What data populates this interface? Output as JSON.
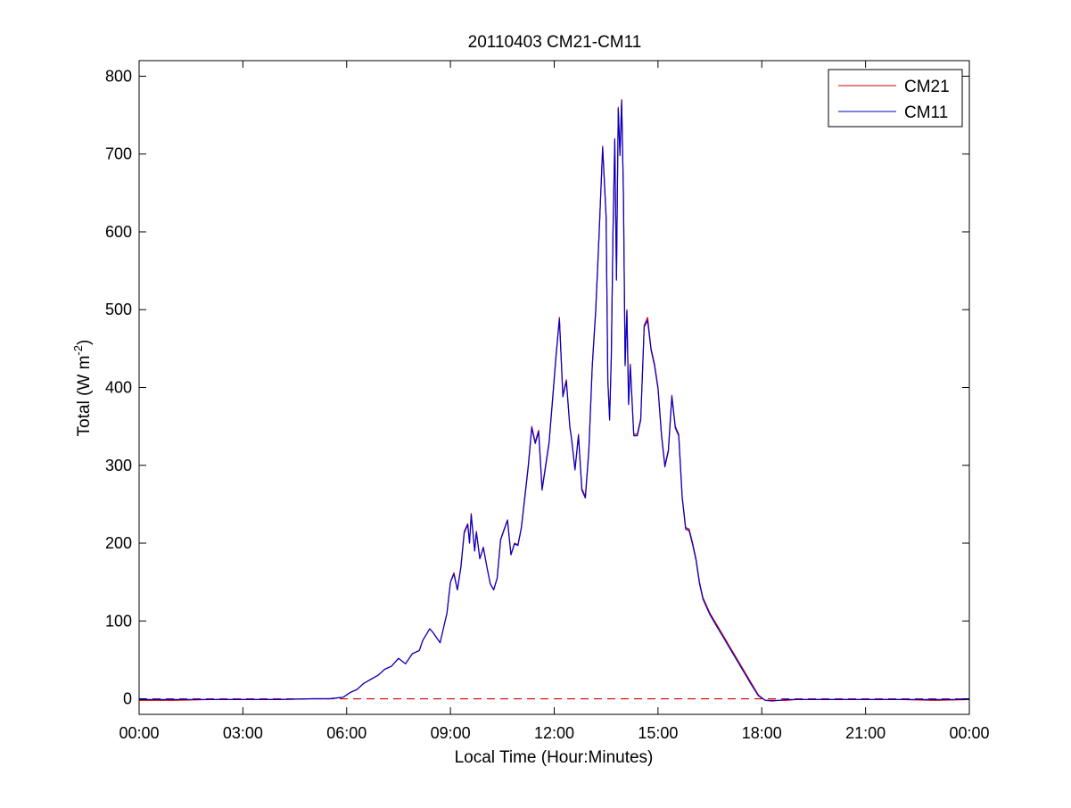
{
  "chart_data": {
    "type": "line",
    "title": "20110403 CM21-CM11",
    "xlabel": "Local Time (Hour:Minutes)",
    "ylabel_main": "Total (W m",
    "ylabel_sup": "-2",
    "ylabel_close": ")",
    "xlim": [
      0,
      24
    ],
    "ylim": [
      -20,
      820
    ],
    "x_ticks": [
      0,
      3,
      6,
      9,
      12,
      15,
      18,
      21,
      24
    ],
    "x_tick_labels": [
      "00:00",
      "03:00",
      "06:00",
      "09:00",
      "12:00",
      "15:00",
      "18:00",
      "21:00",
      "00:00"
    ],
    "y_ticks": [
      0,
      100,
      200,
      300,
      400,
      500,
      600,
      700,
      800
    ],
    "y_tick_labels": [
      "0",
      "100",
      "200",
      "300",
      "400",
      "500",
      "600",
      "700",
      "800"
    ],
    "grid": false,
    "legend_position": "top-right",
    "zero_reference_line": {
      "y": 0,
      "style": "dashed",
      "color": "#d00000"
    },
    "series": [
      {
        "name": "CM21",
        "color": "#d00000",
        "x": [
          0,
          1,
          2,
          3,
          4,
          5,
          5.5,
          5.9,
          6.1,
          6.3,
          6.5,
          6.7,
          6.9,
          7.1,
          7.3,
          7.5,
          7.7,
          7.9,
          8.1,
          8.2,
          8.4,
          8.5,
          8.7,
          8.9,
          9.0,
          9.1,
          9.2,
          9.3,
          9.4,
          9.5,
          9.55,
          9.6,
          9.7,
          9.75,
          9.85,
          9.95,
          10.05,
          10.15,
          10.25,
          10.35,
          10.45,
          10.55,
          10.65,
          10.75,
          10.85,
          10.95,
          11.05,
          11.15,
          11.25,
          11.35,
          11.45,
          11.55,
          11.65,
          11.75,
          11.85,
          11.95,
          12.05,
          12.15,
          12.25,
          12.35,
          12.45,
          12.5,
          12.6,
          12.7,
          12.8,
          12.9,
          13.0,
          13.1,
          13.2,
          13.3,
          13.4,
          13.5,
          13.55,
          13.6,
          13.65,
          13.7,
          13.75,
          13.8,
          13.85,
          13.9,
          13.95,
          14.0,
          14.05,
          14.1,
          14.15,
          14.2,
          14.3,
          14.4,
          14.5,
          14.6,
          14.7,
          14.8,
          14.9,
          15.0,
          15.1,
          15.2,
          15.3,
          15.4,
          15.5,
          15.6,
          15.7,
          15.8,
          15.9,
          16.0,
          16.1,
          16.2,
          16.3,
          16.5,
          16.7,
          16.9,
          17.1,
          17.3,
          17.5,
          17.7,
          17.9,
          18.1,
          18.3,
          18.5,
          18.7,
          19,
          20,
          21,
          22,
          23,
          24
        ],
        "y": [
          -2,
          -2,
          -1,
          -1,
          -1,
          0,
          0,
          2,
          8,
          12,
          20,
          25,
          30,
          38,
          42,
          52,
          45,
          58,
          62,
          75,
          90,
          85,
          72,
          110,
          150,
          162,
          140,
          170,
          215,
          225,
          200,
          238,
          190,
          215,
          180,
          195,
          170,
          148,
          140,
          155,
          205,
          218,
          230,
          185,
          200,
          198,
          220,
          260,
          300,
          350,
          330,
          345,
          270,
          300,
          330,
          385,
          440,
          490,
          390,
          410,
          350,
          335,
          295,
          340,
          270,
          260,
          320,
          430,
          500,
          600,
          710,
          620,
          410,
          360,
          440,
          600,
          720,
          540,
          760,
          700,
          770,
          650,
          430,
          500,
          380,
          430,
          340,
          340,
          360,
          480,
          490,
          450,
          430,
          400,
          340,
          300,
          320,
          390,
          350,
          340,
          260,
          220,
          218,
          200,
          180,
          150,
          130,
          110,
          95,
          80,
          65,
          50,
          35,
          20,
          5,
          -2,
          -3,
          -2,
          -2,
          -1,
          -1,
          -1,
          -1,
          -2,
          -1
        ],
        "note_visible": false
      },
      {
        "name": "CM11",
        "color": "#0000cc",
        "x": [
          0,
          1,
          2,
          3,
          4,
          5,
          5.5,
          5.9,
          6.1,
          6.3,
          6.5,
          6.7,
          6.9,
          7.1,
          7.3,
          7.5,
          7.7,
          7.9,
          8.1,
          8.2,
          8.4,
          8.5,
          8.7,
          8.9,
          9.0,
          9.1,
          9.2,
          9.3,
          9.4,
          9.5,
          9.55,
          9.6,
          9.7,
          9.75,
          9.85,
          9.95,
          10.05,
          10.15,
          10.25,
          10.35,
          10.45,
          10.55,
          10.65,
          10.75,
          10.85,
          10.95,
          11.05,
          11.15,
          11.25,
          11.35,
          11.45,
          11.55,
          11.65,
          11.75,
          11.85,
          11.95,
          12.05,
          12.15,
          12.25,
          12.35,
          12.45,
          12.5,
          12.6,
          12.7,
          12.8,
          12.9,
          13.0,
          13.1,
          13.2,
          13.3,
          13.4,
          13.5,
          13.55,
          13.6,
          13.65,
          13.7,
          13.75,
          13.8,
          13.85,
          13.9,
          13.95,
          14.0,
          14.05,
          14.1,
          14.15,
          14.2,
          14.3,
          14.4,
          14.5,
          14.6,
          14.7,
          14.8,
          14.9,
          15.0,
          15.1,
          15.2,
          15.3,
          15.4,
          15.5,
          15.6,
          15.7,
          15.8,
          15.9,
          16.0,
          16.1,
          16.2,
          16.3,
          16.5,
          16.7,
          16.9,
          17.1,
          17.3,
          17.5,
          17.7,
          17.9,
          18.1,
          18.3,
          18.5,
          18.7,
          19,
          20,
          21,
          22,
          23,
          24
        ],
        "y": [
          -1,
          -1,
          -1,
          -1,
          -1,
          0,
          0,
          2,
          8,
          12,
          20,
          25,
          30,
          38,
          42,
          52,
          45,
          58,
          62,
          75,
          90,
          85,
          72,
          110,
          150,
          160,
          140,
          168,
          213,
          224,
          200,
          236,
          190,
          214,
          180,
          194,
          170,
          148,
          140,
          155,
          204,
          217,
          229,
          185,
          199,
          197,
          219,
          258,
          298,
          348,
          328,
          343,
          268,
          298,
          328,
          383,
          438,
          488,
          388,
          408,
          349,
          334,
          294,
          338,
          268,
          258,
          318,
          428,
          497,
          598,
          708,
          618,
          409,
          358,
          438,
          598,
          718,
          538,
          758,
          698,
          768,
          648,
          428,
          498,
          378,
          428,
          338,
          338,
          358,
          478,
          486,
          448,
          428,
          398,
          338,
          298,
          318,
          388,
          348,
          338,
          258,
          218,
          216,
          198,
          178,
          148,
          128,
          108,
          93,
          78,
          63,
          48,
          33,
          18,
          4,
          -2,
          -2,
          -2,
          -1,
          -1,
          -1,
          -1,
          -1,
          -1,
          -1
        ]
      }
    ]
  }
}
